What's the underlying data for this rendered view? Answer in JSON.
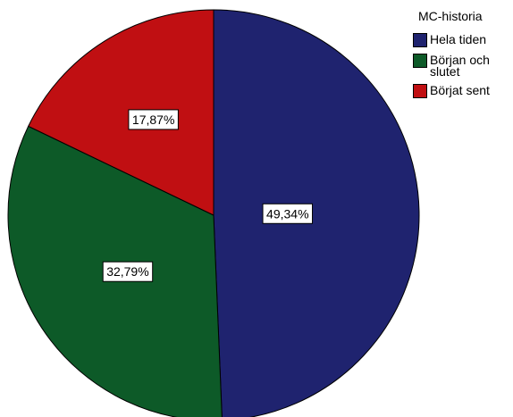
{
  "chart_data": {
    "type": "pie",
    "legend_title": "MC-historia",
    "legend_position": "top-right",
    "slices": [
      {
        "name": "Hela tiden",
        "value": 49.34,
        "label": "49,34%",
        "color": "#1f236f"
      },
      {
        "name": "Början och slutet",
        "value": 32.79,
        "label": "32,79%",
        "color": "#0d5a28"
      },
      {
        "name": "Börjat sent",
        "value": 17.87,
        "label": "17,87%",
        "color": "#c00f12"
      }
    ]
  }
}
